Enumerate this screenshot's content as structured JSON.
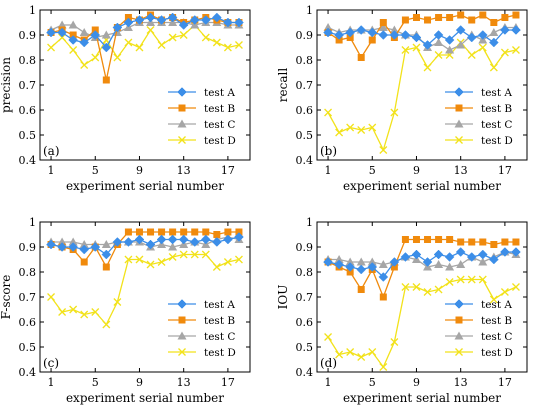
{
  "colors": {
    "test A": "#3c8ee8",
    "test B": "#f08a0c",
    "test C": "#a6a6a6",
    "test D": "#f2e21a"
  },
  "chart_data": [
    {
      "type": "line",
      "panel_label": "(a)",
      "xlabel": "experiment serial number",
      "ylabel": "precision",
      "xlim": [
        0,
        19
      ],
      "ylim": [
        0.4,
        1.0
      ],
      "xticks": [
        1,
        5,
        9,
        13,
        17
      ],
      "yticks": [
        0.4,
        0.5,
        0.6,
        0.7,
        0.8,
        0.9,
        1.0
      ],
      "legend_position": "lower-right",
      "x": [
        1,
        2,
        3,
        4,
        5,
        6,
        7,
        8,
        9,
        10,
        11,
        12,
        13,
        14,
        15,
        16,
        17,
        18
      ],
      "series": [
        {
          "name": "test A",
          "marker": "diamond",
          "values": [
            0.91,
            0.91,
            0.88,
            0.87,
            0.9,
            0.85,
            0.93,
            0.95,
            0.96,
            0.97,
            0.96,
            0.97,
            0.94,
            0.96,
            0.96,
            0.97,
            0.95,
            0.95
          ]
        },
        {
          "name": "test B",
          "marker": "square",
          "values": [
            0.91,
            0.92,
            0.9,
            0.88,
            0.92,
            0.72,
            0.93,
            0.97,
            0.96,
            0.98,
            0.96,
            0.97,
            0.95,
            0.96,
            0.97,
            0.96,
            0.95,
            0.95
          ]
        },
        {
          "name": "test C",
          "marker": "triangle",
          "values": [
            0.92,
            0.94,
            0.94,
            0.91,
            0.89,
            0.9,
            0.91,
            0.93,
            0.95,
            0.95,
            0.95,
            0.95,
            0.95,
            0.94,
            0.95,
            0.95,
            0.94,
            0.94
          ]
        },
        {
          "name": "test D",
          "marker": "x",
          "values": [
            0.85,
            0.89,
            0.84,
            0.78,
            0.81,
            0.88,
            0.81,
            0.87,
            0.85,
            0.92,
            0.86,
            0.89,
            0.9,
            0.94,
            0.89,
            0.87,
            0.85,
            0.86
          ]
        }
      ]
    },
    {
      "type": "line",
      "panel_label": "(b)",
      "xlabel": "experiment serial number",
      "ylabel": "recall",
      "xlim": [
        0,
        19
      ],
      "ylim": [
        0.4,
        1.0
      ],
      "xticks": [
        1,
        5,
        9,
        13,
        17
      ],
      "yticks": [
        0.4,
        0.5,
        0.6,
        0.7,
        0.8,
        0.9,
        1.0
      ],
      "legend_position": "lower-right",
      "x": [
        1,
        2,
        3,
        4,
        5,
        6,
        7,
        8,
        9,
        10,
        11,
        12,
        13,
        14,
        15,
        16,
        17,
        18
      ],
      "series": [
        {
          "name": "test A",
          "marker": "diamond",
          "values": [
            0.91,
            0.9,
            0.91,
            0.92,
            0.91,
            0.9,
            0.9,
            0.9,
            0.89,
            0.86,
            0.9,
            0.88,
            0.92,
            0.89,
            0.9,
            0.87,
            0.92,
            0.92
          ]
        },
        {
          "name": "test B",
          "marker": "square",
          "values": [
            0.91,
            0.88,
            0.89,
            0.81,
            0.88,
            0.95,
            0.89,
            0.96,
            0.97,
            0.96,
            0.97,
            0.97,
            0.98,
            0.96,
            0.98,
            0.95,
            0.97,
            0.98
          ]
        },
        {
          "name": "test C",
          "marker": "triangle",
          "values": [
            0.93,
            0.91,
            0.92,
            0.92,
            0.92,
            0.93,
            0.92,
            0.9,
            0.9,
            0.85,
            0.87,
            0.84,
            0.86,
            0.9,
            0.88,
            0.91,
            0.93,
            0.93
          ]
        },
        {
          "name": "test D",
          "marker": "x",
          "values": [
            0.59,
            0.51,
            0.53,
            0.52,
            0.53,
            0.44,
            0.59,
            0.84,
            0.85,
            0.77,
            0.82,
            0.82,
            0.87,
            0.82,
            0.85,
            0.77,
            0.83,
            0.84
          ]
        }
      ]
    },
    {
      "type": "line",
      "panel_label": "(c)",
      "xlabel": "experiment serial number",
      "ylabel": "F-score",
      "xlim": [
        0,
        19
      ],
      "ylim": [
        0.4,
        1.0
      ],
      "xticks": [
        1,
        5,
        9,
        13,
        17
      ],
      "yticks": [
        0.4,
        0.5,
        0.6,
        0.7,
        0.8,
        0.9,
        1.0
      ],
      "legend_position": "lower-right",
      "x": [
        1,
        2,
        3,
        4,
        5,
        6,
        7,
        8,
        9,
        10,
        11,
        12,
        13,
        14,
        15,
        16,
        17,
        18
      ],
      "series": [
        {
          "name": "test A",
          "marker": "diamond",
          "values": [
            0.91,
            0.9,
            0.9,
            0.89,
            0.9,
            0.87,
            0.92,
            0.92,
            0.93,
            0.91,
            0.93,
            0.93,
            0.93,
            0.92,
            0.93,
            0.92,
            0.93,
            0.94
          ]
        },
        {
          "name": "test B",
          "marker": "square",
          "values": [
            0.91,
            0.9,
            0.89,
            0.84,
            0.9,
            0.82,
            0.91,
            0.96,
            0.96,
            0.96,
            0.96,
            0.96,
            0.96,
            0.96,
            0.96,
            0.95,
            0.96,
            0.96
          ]
        },
        {
          "name": "test C",
          "marker": "triangle",
          "values": [
            0.92,
            0.92,
            0.92,
            0.91,
            0.91,
            0.91,
            0.92,
            0.92,
            0.92,
            0.9,
            0.91,
            0.9,
            0.91,
            0.92,
            0.91,
            0.93,
            0.94,
            0.93
          ]
        },
        {
          "name": "test D",
          "marker": "x",
          "values": [
            0.7,
            0.64,
            0.65,
            0.63,
            0.64,
            0.59,
            0.68,
            0.85,
            0.85,
            0.83,
            0.84,
            0.86,
            0.87,
            0.87,
            0.87,
            0.82,
            0.84,
            0.85
          ]
        }
      ]
    },
    {
      "type": "line",
      "panel_label": "(d)",
      "xlabel": "experiment serial number",
      "ylabel": "IOU",
      "xlim": [
        0,
        19
      ],
      "ylim": [
        0.4,
        1.0
      ],
      "xticks": [
        1,
        5,
        9,
        13,
        17
      ],
      "yticks": [
        0.4,
        0.5,
        0.6,
        0.7,
        0.8,
        0.9,
        1.0
      ],
      "legend_position": "lower-right",
      "x": [
        1,
        2,
        3,
        4,
        5,
        6,
        7,
        8,
        9,
        10,
        11,
        12,
        13,
        14,
        15,
        16,
        17,
        18
      ],
      "series": [
        {
          "name": "test A",
          "marker": "diamond",
          "values": [
            0.84,
            0.83,
            0.82,
            0.81,
            0.82,
            0.78,
            0.84,
            0.86,
            0.87,
            0.84,
            0.87,
            0.86,
            0.88,
            0.86,
            0.87,
            0.85,
            0.88,
            0.88
          ]
        },
        {
          "name": "test B",
          "marker": "square",
          "values": [
            0.84,
            0.82,
            0.8,
            0.73,
            0.81,
            0.7,
            0.82,
            0.93,
            0.93,
            0.93,
            0.93,
            0.93,
            0.92,
            0.92,
            0.92,
            0.91,
            0.92,
            0.92
          ]
        },
        {
          "name": "test C",
          "marker": "triangle",
          "values": [
            0.85,
            0.85,
            0.84,
            0.84,
            0.84,
            0.83,
            0.84,
            0.86,
            0.85,
            0.82,
            0.83,
            0.82,
            0.83,
            0.86,
            0.84,
            0.86,
            0.88,
            0.87
          ]
        },
        {
          "name": "test D",
          "marker": "x",
          "values": [
            0.54,
            0.47,
            0.48,
            0.46,
            0.48,
            0.42,
            0.52,
            0.74,
            0.74,
            0.72,
            0.73,
            0.76,
            0.77,
            0.77,
            0.77,
            0.69,
            0.72,
            0.74
          ]
        }
      ]
    }
  ]
}
